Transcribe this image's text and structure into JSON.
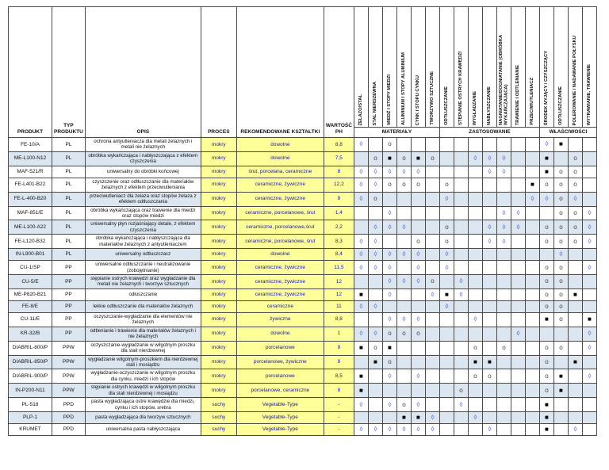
{
  "table": {
    "headers": {
      "product": "PRODUKT",
      "type": "TYP PRODUKTU",
      "desc": "OPIS",
      "process": "PROCES",
      "shapes": "REKOMENDOWANE KSZTAŁTKI",
      "ph": "WARTOŚĆ PH"
    },
    "groups": [
      {
        "label": "MATERIAŁY",
        "span": 6
      },
      {
        "label": "ZASTOSOWANIE",
        "span": 7
      },
      {
        "label": "WŁAŚCIWOŚCI",
        "span": 4
      }
    ],
    "matrix_columns": [
      {
        "key": "m1",
        "slug": "zelazo-stal",
        "label": "ŻELAZO/STAL"
      },
      {
        "key": "m2",
        "slug": "stal-nierdzewna",
        "label": "STAL NIERDZEWNA"
      },
      {
        "key": "m3",
        "slug": "miedz-i-stopy-miedzi",
        "label": "MIEDŹ I STOPY MIEDZI"
      },
      {
        "key": "m4",
        "slug": "aluminium-i-stopy-aluminium",
        "label": "ALUMINIUM I STOPY ALUMINIUM"
      },
      {
        "key": "m5",
        "slug": "cynk-i-stopy-cynku",
        "label": "CYNK I STOPU CYNKU"
      },
      {
        "key": "m6",
        "slug": "tworzywo-sztuczne",
        "label": "TWORZYWO SZTUCZNE"
      },
      {
        "key": "z1",
        "slug": "odtluszczanie",
        "label": "ODTŁUSZCZANIE"
      },
      {
        "key": "z2",
        "slug": "stepianie-ostrych-krawedzi",
        "label": "STĘPIANIE OSTRYCH KRAWĘDZI"
      },
      {
        "key": "z3",
        "slug": "wygladzanie",
        "label": "WYGŁADZANIE"
      },
      {
        "key": "z4",
        "slug": "nablyszczanie",
        "label": "NABŁYSZCZANIE"
      },
      {
        "key": "z5",
        "slug": "nagniatanie-dogniatanie",
        "label": "NAGNIATANIE/DOGNIATANIE (OBRÓBKA WYKAŃCZAJĄCA)"
      },
      {
        "key": "z6",
        "slug": "trawienie-i-odtlenianie",
        "label": "TRAWIENIE I ODTLENIANIE"
      },
      {
        "key": "z7",
        "slug": "przeciwutleniacz",
        "label": "PRZECIWUTLENIACZ"
      },
      {
        "key": "w1",
        "slug": "srodek-myjacy-czyszczacy",
        "label": "ŚRODEK MYJĄCY / CZYSZCZĄCY"
      },
      {
        "key": "w2",
        "slug": "odtluszczanie-wlasciwosc",
        "label": "ODTŁUSZCZANIE"
      },
      {
        "key": "w3",
        "slug": "polerowanie-nadawanie-polysku",
        "label": "POLEROWANIE / NADAWANIE POŁYSKU"
      },
      {
        "key": "w4",
        "slug": "wytrawianie-trawienie",
        "label": "WYTRAWIANIE, TRAWIENIE"
      }
    ],
    "rows": [
      {
        "product": "FE-10/A",
        "type": "PL",
        "desc": "ochrona antyutleniacza dla metali żelaznych i metali nie żelaznych",
        "process": "mokry",
        "shapes": "dowolne",
        "ph": "8,8",
        "shaded": false,
        "marks": {
          "m1": "◊",
          "m3": "o",
          "w1": "◊",
          "w2": "■"
        }
      },
      {
        "product": "ME-L100-N12",
        "type": "PL",
        "desc": "obróbka wykańczająca i nabłyszczająca z efektem czyszczenia",
        "process": "mokry",
        "shapes": "dowolne",
        "ph": "7,5",
        "shaded": true,
        "marks": {
          "m2": "o",
          "m3": "■",
          "m4": "o",
          "m5": "■",
          "m6": "o",
          "z3": "◊",
          "z4": "◊",
          "z5": "◊",
          "w1": "■",
          "w3": "o"
        }
      },
      {
        "product": "MAF-521/R",
        "type": "PL",
        "desc": "uniwersalny do obróbki końcowej",
        "process": "mokry",
        "shapes": "śrut, porcelana, ceramiczne",
        "ph": "8",
        "shaded": false,
        "marks": {
          "m1": "◊",
          "m2": "◊",
          "m3": "◊",
          "m4": "◊",
          "m5": "◊",
          "z4": "◊",
          "z5": "◊",
          "w1": "■",
          "w2": "o",
          "w3": "o"
        }
      },
      {
        "product": "FE-L401-B22",
        "type": "PL",
        "desc": "czyszczenie oraz odtłuszczanie dla materiałów żelaznych z efektem przeciwutleniania",
        "process": "mokry",
        "shapes": "ceramiczne, żywiczne",
        "ph": "12,2",
        "shaded": false,
        "marks": {
          "m1": "◊",
          "m2": "◊",
          "m3": "o",
          "m4": "o",
          "m5": "o",
          "z1": "o",
          "z7": "■",
          "w1": "o",
          "w2": "o",
          "w3": "o"
        }
      },
      {
        "product": "FE-L-400-B20",
        "type": "PL",
        "desc": "przeciwutleniacz dla żelaza oraz stopów żelaza z efektem odtłuszczania",
        "process": "mokry",
        "shapes": "ceramiczne, żywiczne",
        "ph": "9",
        "shaded": true,
        "marks": {
          "m1": "◊",
          "m2": "o",
          "z1": "◊",
          "z7": "◊",
          "w1": "◊",
          "w2": "o",
          "w3": "◊"
        }
      },
      {
        "product": "MAF-851/E",
        "type": "PL",
        "desc": "obróbka wykańczająca oraz trawienie dla miedzi oraz stopów miedzi",
        "process": "mokry",
        "shapes": "ceramiczne, porcelanowe, śrut",
        "ph": "1,4",
        "shaded": false,
        "marks": {
          "m3": "◊",
          "z5": "◊",
          "z6": "◊",
          "w2": "o",
          "w3": "o",
          "w4": "◊"
        }
      },
      {
        "product": "ME-L100-A22",
        "type": "PL",
        "desc": "uniwersalny płyn rozjaśniający detale, z efektem czyszczenia",
        "process": "mokry",
        "shapes": "ceramiczne, porcelanowe,śrut",
        "ph": "2,2",
        "shaded": true,
        "marks": {
          "m2": "◊",
          "m3": "◊",
          "m4": "◊",
          "z1": "o",
          "z4": "◊",
          "z5": "◊",
          "z6": "◊",
          "w1": "o",
          "w2": "o",
          "w3": "o",
          "w4": "◊"
        }
      },
      {
        "product": "FE-L120-B32",
        "type": "PL",
        "desc": "obróbka wykańczająca i nabłyszczająca dla materiałów żelaznych z antyutleniaczem",
        "process": "mokry",
        "shapes": "ceramiczne, porcelanowe, śrut",
        "ph": "8,3",
        "shaded": false,
        "marks": {
          "m1": "◊",
          "m2": "◊",
          "m5": "o",
          "z1": "o",
          "z4": "◊",
          "z5": "◊",
          "w1": "o",
          "w2": "o",
          "w3": "o",
          "w4": "◊"
        }
      },
      {
        "product": "IN-L900-B01",
        "type": "PL",
        "desc": "uniwersalny odtłuszczacz",
        "process": "mokry",
        "shapes": "dowolne",
        "ph": "8,4",
        "shaded": true,
        "marks": {
          "m1": "◊",
          "m2": "◊",
          "m3": "◊",
          "m4": "◊",
          "m5": "◊",
          "z1": "◊",
          "w2": "◊"
        }
      },
      {
        "product": "CU-1/SP",
        "type": "PP",
        "desc": "uniwersalne odtłuszczanie i neutralizowanie (zobojętnianie)",
        "process": "mokry",
        "shapes": "ceramiczne, żywiczne",
        "ph": "11,5",
        "shaded": false,
        "marks": {
          "m1": "◊",
          "m2": "◊",
          "m3": "◊",
          "m5": "◊",
          "z1": "◊",
          "w1": "o",
          "w2": "o",
          "w4": "◊"
        }
      },
      {
        "product": "CU-5/E",
        "type": "PP",
        "desc": "stępianie ostrych krawędzi oraz wygładzanie dla metali nie żelaznych i tworzyw sztucznych",
        "process": "mokry",
        "shapes": "ceramiczne, żywiczne",
        "ph": "12",
        "shaded": true,
        "marks": {
          "m3": "◊",
          "m4": "◊",
          "m5": "◊",
          "m6": "o",
          "z2": "◊",
          "w1": "o",
          "w2": "o"
        }
      },
      {
        "product": "ME-P820-B21",
        "type": "PP",
        "desc": "odłuszczanie",
        "process": "mokry",
        "shapes": "ceramiczne, żywiczne",
        "ph": "12",
        "shaded": false,
        "marks": {
          "m1": "■",
          "m3": "◊",
          "m6": "◊",
          "z1": "■",
          "z2": "◊",
          "w1": "o",
          "w2": "o",
          "w3": "■"
        }
      },
      {
        "product": "FE-8/E",
        "type": "PP",
        "desc": "lekkie odtłuszczanie dla materiałów żelaznych",
        "process": "mokry",
        "shapes": "ceramiczne",
        "ph": "11",
        "shaded": true,
        "marks": {
          "m1": "◊",
          "m2": "◊",
          "z1": "◊",
          "w1": "o",
          "w2": "o"
        }
      },
      {
        "product": "CU-11/E",
        "type": "PP",
        "desc": "oczyszczanie-wygładzanie dla elementów nie żelaznych",
        "process": "mokry",
        "shapes": "żywiczne",
        "ph": "8,8",
        "shaded": false,
        "marks": {
          "m3": "◊",
          "m4": "◊",
          "m5": "◊",
          "z3": "◊",
          "w1": "■",
          "w2": "o",
          "w4": "■"
        }
      },
      {
        "product": "KR-32/B",
        "type": "PP",
        "desc": "odtlenianie i trawienie dla materiałów żelaznych i nie żelaznych",
        "process": "mokry",
        "shapes": "dowolne",
        "ph": "1",
        "shaded": true,
        "marks": {
          "m1": "◊",
          "m2": "◊",
          "m3": "o",
          "m4": "o",
          "m5": "o",
          "z6": "◊",
          "w4": "◊"
        }
      },
      {
        "product": "DIABRIL-800/P",
        "type": "PPW",
        "desc": "oczyszczanie-wygładzanie w wilgotnym proszku dla stali nierdzewnej",
        "process": "mokry",
        "shapes": "porcelanowe",
        "ph": "9",
        "shaded": false,
        "marks": {
          "m1": "■",
          "m2": "o",
          "m3": "■",
          "z3": "o",
          "z5": "o",
          "w1": "o",
          "w2": "o",
          "w4": "◊"
        }
      },
      {
        "product": "DIABRIL-850/P",
        "type": "PPW",
        "desc": "wygładzanie wilgotnym-proszkiem dla nierdzewnej stali i mosiądzu",
        "process": "mokry",
        "shapes": "porcelanowe, żywiczne",
        "ph": "9",
        "shaded": true,
        "marks": {
          "m2": "■",
          "m3": "o",
          "z3": "■",
          "z4": "■",
          "w1": "o",
          "w3": "■"
        }
      },
      {
        "product": "DIABRIL-900/P",
        "type": "PPW",
        "desc": "wygładzanie-oczyszczanie w wilgotnym proszku dla cynku, miedzi i ich stopów",
        "process": "mokry",
        "shapes": "porcelanowe",
        "ph": "8,5",
        "shaded": false,
        "marks": {
          "m1": "■",
          "m3": "◊",
          "m5": "◊",
          "z3": "o",
          "z4": "o",
          "w1": "o",
          "w2": "■",
          "w4": "◊"
        }
      },
      {
        "product": "IN-P200-N11",
        "type": "PPW",
        "desc": "stępianie ostrych krawędzi w wilgotnym proszku dla stali nierdzewnej i mosiądzu",
        "process": "mokry",
        "shapes": "porcelanowe, ceramiczne",
        "ph": "8",
        "shaded": true,
        "marks": {
          "m1": "■",
          "z2": "o",
          "w1": "o",
          "w2": "■"
        }
      },
      {
        "product": "PL-518",
        "type": "PPD",
        "desc": "pasta wygładzająca ostre krawędzie dla miedzi, cynku i ich stopów, srebra",
        "process": "suchy",
        "shapes": "Vegetable-Type",
        "ph": "-",
        "shaded": false,
        "marks": {
          "m1": "◊",
          "m3": "◊",
          "m4": "o",
          "m5": "◊",
          "z2": "◊",
          "w1": "■"
        }
      },
      {
        "product": "PLP-1",
        "type": "PPD",
        "desc": "pasta wygładzająca dla tworzyw sztucznych",
        "process": "suchy",
        "shapes": "Vegetable-Type",
        "ph": "-",
        "shaded": true,
        "marks": {
          "m4": "■",
          "m5": "■",
          "m6": "◊",
          "z3": "◊",
          "w1": "■"
        }
      },
      {
        "product": "KRUMET",
        "type": "PPD",
        "desc": "uniwersalna pasta nabłyszczająca",
        "process": "suchy",
        "shapes": "Vegetable-Type",
        "ph": "-",
        "shaded": false,
        "marks": {
          "m1": "◊",
          "m2": "◊",
          "m3": "◊",
          "m4": "◊",
          "m5": "◊",
          "m6": "◊",
          "z4": "◊",
          "w1": "■",
          "w3": "◊"
        }
      }
    ]
  },
  "colors": {
    "highlight_yellow": "#ffff99",
    "shaded_row_blue": "#dce6f1",
    "yellow_cell_text": "#1414b8",
    "grid_line": "#4a4a4a"
  },
  "mark_colors": {
    "◊": "#3a50c8",
    "o": "#444444",
    "■": "#000000"
  },
  "symbols_legend": {
    "diamond": "◊",
    "circle": "o",
    "square": "■"
  }
}
